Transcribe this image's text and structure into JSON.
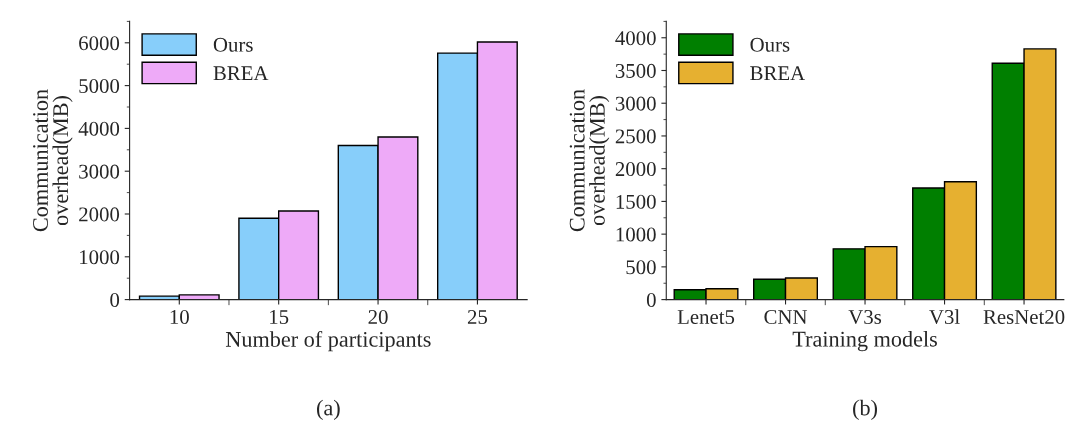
{
  "chart_data": [
    {
      "type": "bar",
      "title": "(a)",
      "xlabel": "Number of participants",
      "ylabel": "Communication\noverhead(MB)",
      "categories": [
        "10",
        "15",
        "20",
        "25"
      ],
      "series": [
        {
          "name": "Ours",
          "color": "#87cefa",
          "values": [
            80,
            1900,
            3600,
            5760
          ]
        },
        {
          "name": "BREA",
          "color": "#eeaaf8",
          "values": [
            110,
            2070,
            3800,
            6020
          ]
        }
      ],
      "ylim": [
        0,
        6500
      ],
      "yticks": [
        0,
        1000,
        2000,
        3000,
        4000,
        5000,
        6000
      ],
      "legend": "top left",
      "grid": false
    },
    {
      "type": "bar",
      "title": "(b)",
      "xlabel": "Training models",
      "ylabel": "Communication\noverhead(MB)",
      "categories": [
        "Lenet5",
        "CNN",
        "V3s",
        "V3l",
        "ResNet20"
      ],
      "series": [
        {
          "name": "Ours",
          "color": "#007f00",
          "values": [
            150,
            310,
            775,
            1705,
            3610
          ]
        },
        {
          "name": "BREA",
          "color": "#e6b030",
          "values": [
            165,
            330,
            810,
            1800,
            3830
          ]
        }
      ],
      "ylim": [
        0,
        4250
      ],
      "yticks": [
        0,
        500,
        1000,
        1500,
        2000,
        2500,
        3000,
        3500,
        4000
      ],
      "legend": "top left",
      "grid": false
    }
  ]
}
